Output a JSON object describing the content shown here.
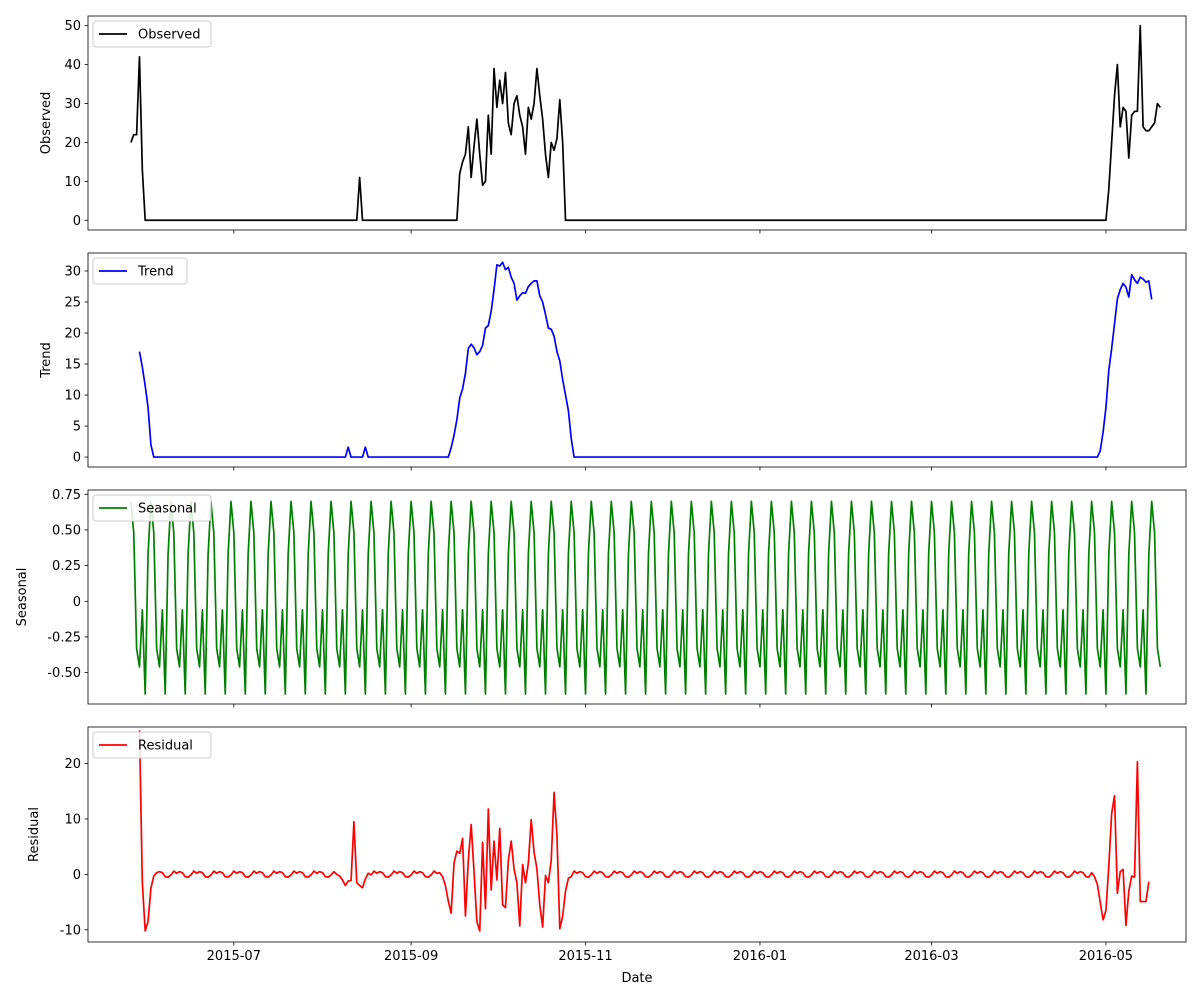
{
  "chart_data": [
    {
      "type": "line",
      "ylabel": "Observed",
      "legend": "Observed",
      "legend_position": "upper-left",
      "color": "#000000",
      "ylim": [
        -2.5,
        52.5
      ],
      "yticks": [
        0,
        10,
        20,
        30,
        40,
        50
      ],
      "xlim": [
        "2015-05-11",
        "2016-05-29"
      ],
      "series": [
        {
          "name": "Observed",
          "points": [
            [
              "2015-05-26",
              20
            ],
            [
              "2015-05-27",
              22
            ],
            [
              "2015-05-28",
              22
            ],
            [
              "2015-05-29",
              42
            ],
            [
              "2015-05-30",
              13
            ],
            [
              "2015-05-31",
              0
            ],
            [
              "2015-08-13",
              0
            ],
            [
              "2015-08-14",
              11
            ],
            [
              "2015-08-15",
              0
            ],
            [
              "2015-09-17",
              0
            ],
            [
              "2015-09-18",
              12
            ],
            [
              "2015-09-19",
              15
            ],
            [
              "2015-09-20",
              17
            ],
            [
              "2015-09-21",
              24
            ],
            [
              "2015-09-22",
              11
            ],
            [
              "2015-09-23",
              19
            ],
            [
              "2015-09-24",
              26
            ],
            [
              "2015-09-25",
              17
            ],
            [
              "2015-09-26",
              9
            ],
            [
              "2015-09-27",
              10
            ],
            [
              "2015-09-28",
              27
            ],
            [
              "2015-09-29",
              17
            ],
            [
              "2015-09-30",
              39
            ],
            [
              "2015-10-01",
              29
            ],
            [
              "2015-10-02",
              36
            ],
            [
              "2015-10-03",
              30
            ],
            [
              "2015-10-04",
              38
            ],
            [
              "2015-10-05",
              25
            ],
            [
              "2015-10-06",
              22
            ],
            [
              "2015-10-07",
              30
            ],
            [
              "2015-10-08",
              32
            ],
            [
              "2015-10-09",
              27
            ],
            [
              "2015-10-10",
              24
            ],
            [
              "2015-10-11",
              17
            ],
            [
              "2015-10-12",
              29
            ],
            [
              "2015-10-13",
              26
            ],
            [
              "2015-10-14",
              30
            ],
            [
              "2015-10-15",
              39
            ],
            [
              "2015-10-16",
              32
            ],
            [
              "2015-10-17",
              26
            ],
            [
              "2015-10-18",
              17
            ],
            [
              "2015-10-19",
              11
            ],
            [
              "2015-10-20",
              20
            ],
            [
              "2015-10-21",
              18
            ],
            [
              "2015-10-22",
              21
            ],
            [
              "2015-10-23",
              31
            ],
            [
              "2015-10-24",
              20
            ],
            [
              "2015-10-25",
              0
            ],
            [
              "2016-05-01",
              0
            ],
            [
              "2016-05-02",
              8
            ],
            [
              "2016-05-03",
              20
            ],
            [
              "2016-05-04",
              32
            ],
            [
              "2016-05-05",
              40
            ],
            [
              "2016-05-06",
              24
            ],
            [
              "2016-05-07",
              29
            ],
            [
              "2016-05-08",
              28
            ],
            [
              "2016-05-09",
              16
            ],
            [
              "2016-05-10",
              27
            ],
            [
              "2016-05-11",
              28
            ],
            [
              "2016-05-12",
              28
            ],
            [
              "2016-05-13",
              50
            ],
            [
              "2016-05-14",
              24
            ],
            [
              "2016-05-15",
              23
            ],
            [
              "2016-05-16",
              23
            ],
            [
              "2016-05-17",
              24
            ],
            [
              "2016-05-18",
              25
            ],
            [
              "2016-05-19",
              30
            ],
            [
              "2016-05-20",
              29
            ]
          ]
        }
      ]
    },
    {
      "type": "line",
      "ylabel": "Trend",
      "legend": "Trend",
      "legend_position": "upper-left",
      "color": "#0000ff",
      "ylim": [
        -1.6,
        32.9
      ],
      "yticks": [
        0,
        5,
        10,
        15,
        20,
        25,
        30
      ],
      "xlim": [
        "2015-05-11",
        "2016-05-29"
      ],
      "series": [
        {
          "name": "Trend",
          "points": [
            [
              "2015-05-29",
              17
            ],
            [
              "2015-05-30",
              14.5
            ],
            [
              "2015-05-31",
              11.5
            ],
            [
              "2015-06-01",
              8
            ],
            [
              "2015-06-02",
              2
            ],
            [
              "2015-06-03",
              0
            ],
            [
              "2015-08-09",
              0
            ],
            [
              "2015-08-10",
              1.6
            ],
            [
              "2015-08-16",
              1.6
            ],
            [
              "2015-08-17",
              0
            ],
            [
              "2015-09-14",
              0
            ],
            [
              "2015-09-15",
              1.5
            ],
            [
              "2015-09-16",
              3.5
            ],
            [
              "2015-09-17",
              6
            ],
            [
              "2015-09-18",
              9.5
            ],
            [
              "2015-09-19",
              11
            ],
            [
              "2015-09-20",
              13.5
            ],
            [
              "2015-09-21",
              17.5
            ],
            [
              "2015-09-22",
              18.2
            ],
            [
              "2015-09-23",
              17.6
            ],
            [
              "2015-09-24",
              16.5
            ],
            [
              "2015-09-25",
              17
            ],
            [
              "2015-09-26",
              18
            ],
            [
              "2015-09-27",
              20.8
            ],
            [
              "2015-09-28",
              21.2
            ],
            [
              "2015-09-29",
              23.5
            ],
            [
              "2015-09-30",
              27
            ],
            [
              "2015-10-01",
              31
            ],
            [
              "2015-10-02",
              30.8
            ],
            [
              "2015-10-03",
              31.4
            ],
            [
              "2015-10-04",
              30.2
            ],
            [
              "2015-10-05",
              30.6
            ],
            [
              "2015-10-06",
              29
            ],
            [
              "2015-10-07",
              28
            ],
            [
              "2015-10-08",
              25.3
            ],
            [
              "2015-10-09",
              26
            ],
            [
              "2015-10-10",
              26.5
            ],
            [
              "2015-10-11",
              26.4
            ],
            [
              "2015-10-12",
              27.5
            ],
            [
              "2015-10-13",
              28
            ],
            [
              "2015-10-14",
              28.4
            ],
            [
              "2015-10-15",
              28.4
            ],
            [
              "2015-10-16",
              26
            ],
            [
              "2015-10-17",
              25
            ],
            [
              "2015-10-18",
              23
            ],
            [
              "2015-10-19",
              20.8
            ],
            [
              "2015-10-20",
              20.6
            ],
            [
              "2015-10-21",
              19.5
            ],
            [
              "2015-10-22",
              17
            ],
            [
              "2015-10-23",
              15.5
            ],
            [
              "2015-10-24",
              12.5
            ],
            [
              "2015-10-25",
              10
            ],
            [
              "2015-10-26",
              7.5
            ],
            [
              "2015-10-27",
              3
            ],
            [
              "2015-10-28",
              0
            ],
            [
              "2016-04-28",
              0
            ],
            [
              "2016-04-29",
              1
            ],
            [
              "2016-04-30",
              4
            ],
            [
              "2016-05-01",
              8
            ],
            [
              "2016-05-02",
              14
            ],
            [
              "2016-05-03",
              17.5
            ],
            [
              "2016-05-04",
              21.5
            ],
            [
              "2016-05-05",
              25.5
            ],
            [
              "2016-05-06",
              27
            ],
            [
              "2016-05-07",
              28
            ],
            [
              "2016-05-08",
              27.4
            ],
            [
              "2016-05-09",
              25.8
            ],
            [
              "2016-05-10",
              29.4
            ],
            [
              "2016-05-11",
              28.6
            ],
            [
              "2016-05-12",
              28
            ],
            [
              "2016-05-13",
              29
            ],
            [
              "2016-05-14",
              28.7
            ],
            [
              "2016-05-15",
              28.2
            ],
            [
              "2016-05-16",
              28.4
            ],
            [
              "2016-05-17",
              25.4
            ]
          ]
        }
      ]
    },
    {
      "type": "line",
      "ylabel": "Seasonal",
      "legend": "Seasonal",
      "legend_position": "upper-left",
      "color": "#008000",
      "ylim": [
        -0.72,
        0.78
      ],
      "yticks": [
        -0.5,
        -0.25,
        0.0,
        0.25,
        0.5,
        0.75
      ],
      "xlim": [
        "2015-05-11",
        "2016-05-29"
      ],
      "start_date": "2015-05-26",
      "end_date": "2016-05-20",
      "weekly_pattern": [
        0.7,
        0.48,
        -0.33,
        -0.46,
        -0.06,
        -0.65,
        0.33
      ],
      "series": [
        {
          "name": "Seasonal"
        }
      ]
    },
    {
      "type": "line",
      "ylabel": "Residual",
      "legend": "Residual",
      "legend_position": "upper-left",
      "color": "#ff0000",
      "ylim": [
        -12.2,
        26.6
      ],
      "yticks": [
        -10,
        0,
        10,
        20
      ],
      "xlim": [
        "2015-05-11",
        "2016-05-29"
      ],
      "xticks": [
        "2015-07-01",
        "2015-09-01",
        "2015-11-01",
        "2016-01-01",
        "2016-03-01",
        "2016-05-01"
      ],
      "xticklabels": [
        "2015-07",
        "2015-09",
        "2015-11",
        "2016-01",
        "2016-03",
        "2016-05"
      ],
      "xlabel": "Date",
      "series": [
        {
          "name": "Residual",
          "points": [
            [
              "2015-05-29",
              26
            ],
            [
              "2015-05-30",
              -1.5
            ],
            [
              "2015-05-31",
              -10.2
            ],
            [
              "2015-06-01",
              -8.5
            ],
            [
              "2015-06-02",
              -2.5
            ],
            [
              "2015-06-03",
              -0.3
            ],
            [
              "2015-06-04",
              0.3
            ],
            [
              "2015-08-05",
              0.5
            ],
            [
              "2015-08-06",
              0
            ],
            [
              "2015-08-07",
              -0.3
            ],
            [
              "2015-08-08",
              -1
            ],
            [
              "2015-08-09",
              -2
            ],
            [
              "2015-08-10",
              -1.2
            ],
            [
              "2015-08-11",
              -1.1
            ],
            [
              "2015-08-12",
              9.5
            ],
            [
              "2015-08-13",
              -1.5
            ],
            [
              "2015-08-14",
              -2
            ],
            [
              "2015-08-15",
              -2.4
            ],
            [
              "2015-08-16",
              -0.8
            ],
            [
              "2015-08-17",
              0.2
            ],
            [
              "2015-09-11",
              0.3
            ],
            [
              "2015-09-12",
              -0.4
            ],
            [
              "2015-09-13",
              -2
            ],
            [
              "2015-09-14",
              -4.8
            ],
            [
              "2015-09-15",
              -7
            ],
            [
              "2015-09-16",
              2
            ],
            [
              "2015-09-17",
              4.2
            ],
            [
              "2015-09-18",
              3.8
            ],
            [
              "2015-09-19",
              6.5
            ],
            [
              "2015-09-20",
              -7.5
            ],
            [
              "2015-09-21",
              2.5
            ],
            [
              "2015-09-22",
              9
            ],
            [
              "2015-09-23",
              0.5
            ],
            [
              "2015-09-24",
              -8.5
            ],
            [
              "2015-09-25",
              -10.2
            ],
            [
              "2015-09-26",
              5.8
            ],
            [
              "2015-09-27",
              -6.2
            ],
            [
              "2015-09-28",
              11.8
            ],
            [
              "2015-09-29",
              -2.8
            ],
            [
              "2015-09-30",
              6
            ],
            [
              "2015-10-01",
              -1
            ],
            [
              "2015-10-02",
              8.3
            ],
            [
              "2015-10-03",
              -5.5
            ],
            [
              "2015-10-04",
              -6
            ],
            [
              "2015-10-05",
              2.5
            ],
            [
              "2015-10-06",
              6
            ],
            [
              "2015-10-07",
              1
            ],
            [
              "2015-10-08",
              -1.5
            ],
            [
              "2015-10-09",
              -9.3
            ],
            [
              "2015-10-10",
              1.8
            ],
            [
              "2015-10-11",
              -1.5
            ],
            [
              "2015-10-12",
              2
            ],
            [
              "2015-10-13",
              9.9
            ],
            [
              "2015-10-14",
              4
            ],
            [
              "2015-10-15",
              1
            ],
            [
              "2015-10-16",
              -5.5
            ],
            [
              "2015-10-17",
              -9.5
            ],
            [
              "2015-10-18",
              -0.2
            ],
            [
              "2015-10-19",
              -1.5
            ],
            [
              "2015-10-20",
              2.5
            ],
            [
              "2015-10-21",
              14.8
            ],
            [
              "2015-10-22",
              7
            ],
            [
              "2015-10-23",
              -9.8
            ],
            [
              "2015-10-24",
              -7.5
            ],
            [
              "2015-10-25",
              -3
            ],
            [
              "2015-10-26",
              -0.7
            ],
            [
              "2015-10-27",
              -0.4
            ],
            [
              "2016-04-26",
              0.3
            ],
            [
              "2016-04-27",
              -0.4
            ],
            [
              "2016-04-28",
              -1.8
            ],
            [
              "2016-04-29",
              -5
            ],
            [
              "2016-04-30",
              -8.2
            ],
            [
              "2016-05-01",
              -6.5
            ],
            [
              "2016-05-02",
              1.5
            ],
            [
              "2016-05-03",
              11
            ],
            [
              "2016-05-04",
              14.2
            ],
            [
              "2016-05-05",
              -3.4
            ],
            [
              "2016-05-06",
              0.5
            ],
            [
              "2016-05-07",
              0.9
            ],
            [
              "2016-05-08",
              -9.2
            ],
            [
              "2016-05-09",
              -3
            ],
            [
              "2016-05-10",
              -0.3
            ],
            [
              "2016-05-11",
              -0.5
            ],
            [
              "2016-05-12",
              20.3
            ],
            [
              "2016-05-13",
              -4.9
            ],
            [
              "2016-05-14",
              -4.9
            ],
            [
              "2016-05-15",
              -4.9
            ],
            [
              "2016-05-16",
              -1.3
            ]
          ]
        }
      ]
    }
  ]
}
